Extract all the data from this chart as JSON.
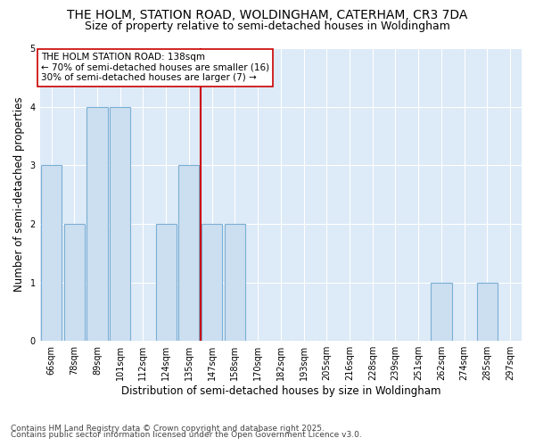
{
  "title_line1": "THE HOLM, STATION ROAD, WOLDINGHAM, CATERHAM, CR3 7DA",
  "title_line2": "Size of property relative to semi-detached houses in Woldingham",
  "xlabel": "Distribution of semi-detached houses by size in Woldingham",
  "ylabel": "Number of semi-detached properties",
  "categories": [
    "66sqm",
    "78sqm",
    "89sqm",
    "101sqm",
    "112sqm",
    "124sqm",
    "135sqm",
    "147sqm",
    "158sqm",
    "170sqm",
    "182sqm",
    "193sqm",
    "205sqm",
    "216sqm",
    "228sqm",
    "239sqm",
    "251sqm",
    "262sqm",
    "274sqm",
    "285sqm",
    "297sqm"
  ],
  "values": [
    3,
    2,
    4,
    4,
    0,
    2,
    3,
    2,
    2,
    0,
    0,
    0,
    0,
    0,
    0,
    0,
    0,
    1,
    0,
    1,
    0
  ],
  "bar_color": "#ccdff0",
  "bar_edge_color": "#7bafd4",
  "highlight_bar_index": 6,
  "highlight_edge_color": "#cc0000",
  "annotation_title": "THE HOLM STATION ROAD: 138sqm",
  "annotation_line1": "← 70% of semi-detached houses are smaller (16)",
  "annotation_line2": "30% of semi-detached houses are larger (7) →",
  "annotation_box_color": "#ffffff",
  "annotation_box_edge": "#cc0000",
  "footer_line1": "Contains HM Land Registry data © Crown copyright and database right 2025.",
  "footer_line2": "Contains public sector information licensed under the Open Government Licence v3.0.",
  "ylim": [
    0,
    5
  ],
  "yticks": [
    0,
    1,
    2,
    3,
    4,
    5
  ],
  "background_color": "#ddeaf7",
  "grid_color": "#ffffff",
  "fig_background": "#ffffff",
  "title_fontsize": 10,
  "subtitle_fontsize": 9,
  "axis_label_fontsize": 8.5,
  "tick_fontsize": 7,
  "annotation_fontsize": 7.5,
  "footer_fontsize": 6.5
}
